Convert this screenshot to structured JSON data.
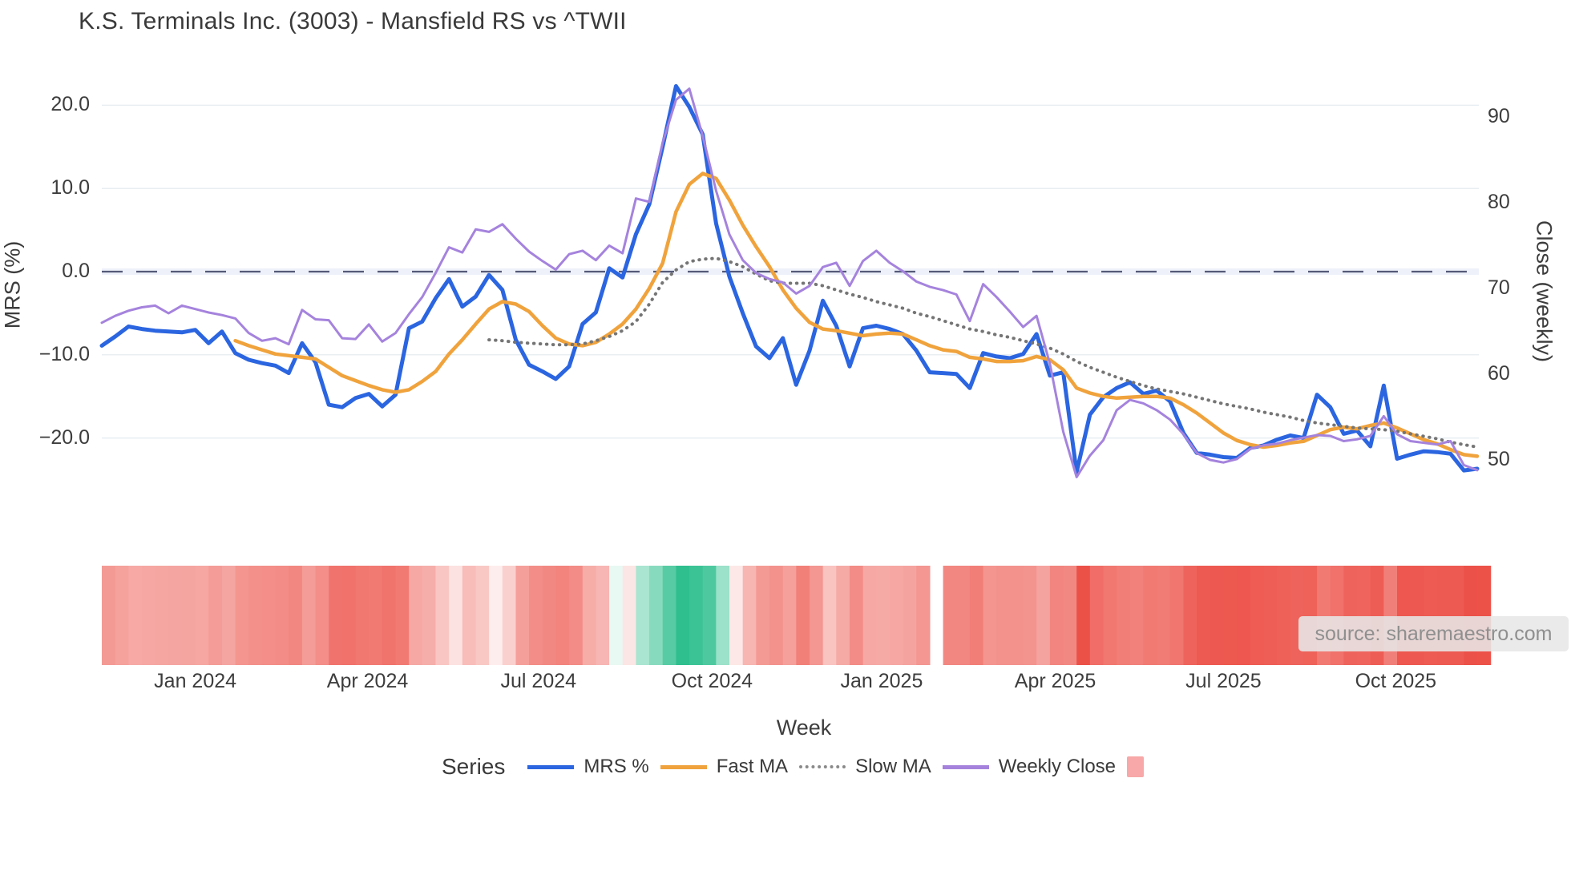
{
  "title": "K.S. Terminals Inc. (3003) - Mansfield RS vs ^TWII",
  "source_note": "source: sharemaestro.com",
  "chart_data": {
    "type": "line",
    "title": "K.S. Terminals Inc. (3003) - Mansfield RS vs ^TWII",
    "xlabel": "Week",
    "ylabel_left": "MRS (%)",
    "ylabel_right": "Close (weekly)",
    "grid": true,
    "zero_line_value": 0,
    "y_left_ticks": {
      "values": [
        20,
        10,
        0,
        -10,
        -20
      ],
      "labels": [
        "20.0",
        "10.0",
        "0.0",
        "−10.0",
        "−20.0"
      ]
    },
    "y_right_ticks": {
      "values": [
        90,
        80,
        70,
        60,
        50
      ],
      "labels": [
        "90",
        "80",
        "70",
        "60",
        "50"
      ]
    },
    "ylim_left": [
      -29,
      26
    ],
    "ylim_right": [
      44,
      97
    ],
    "x_ticks": [
      {
        "label": "Jan 2024",
        "week_index": 7.0
      },
      {
        "label": "Apr 2024",
        "week_index": 19.9
      },
      {
        "label": "Jul 2024",
        "week_index": 32.7
      },
      {
        "label": "Oct 2024",
        "week_index": 45.7
      },
      {
        "label": "Jan 2025",
        "week_index": 58.4
      },
      {
        "label": "Apr 2025",
        "week_index": 71.4
      },
      {
        "label": "Jul 2025",
        "week_index": 84.0
      },
      {
        "label": "Oct 2025",
        "week_index": 96.9
      }
    ],
    "legend": {
      "title": "Series",
      "items": [
        {
          "label": "MRS %",
          "swatch": "line",
          "color": "#2b65e0"
        },
        {
          "label": "Fast MA",
          "swatch": "line",
          "color": "#f0a33c"
        },
        {
          "label": "Slow MA",
          "swatch": "dots",
          "color": "#8a8a8a"
        },
        {
          "label": "Weekly Close",
          "swatch": "line",
          "color": "#a583dd"
        },
        {
          "label": "",
          "swatch": "square",
          "color": "#f8a8a8"
        }
      ]
    },
    "series": [
      {
        "name": "MRS %",
        "axis": "left",
        "color": "#2b65e0",
        "width": 5,
        "style": "solid",
        "start_index": 0,
        "values": [
          -8.9,
          -7.8,
          -6.6,
          -6.9,
          -7.1,
          -7.2,
          -7.3,
          -7.0,
          -8.6,
          -7.2,
          -9.8,
          -10.6,
          -11.0,
          -11.3,
          -12.2,
          -8.6,
          -10.9,
          -16.0,
          -16.3,
          -15.2,
          -14.7,
          -16.2,
          -14.8,
          -6.8,
          -6.0,
          -3.2,
          -0.9,
          -4.2,
          -3.0,
          -0.4,
          -2.2,
          -8.2,
          -11.2,
          -12.0,
          -12.9,
          -11.4,
          -6.3,
          -4.9,
          0.4,
          -0.7,
          4.5,
          8.1,
          15.0,
          22.3,
          19.8,
          16.5,
          5.8,
          -0.6,
          -5.0,
          -9.0,
          -10.4,
          -8.0,
          -13.6,
          -9.5,
          -3.5,
          -6.5,
          -11.4,
          -6.8,
          -6.5,
          -6.9,
          -7.5,
          -9.5,
          -12.1,
          -12.2,
          -12.3,
          -14.0,
          -9.8,
          -10.2,
          -10.4,
          -9.9,
          -7.5,
          -12.5,
          -12.1,
          -24.1,
          -17.2,
          -15.1,
          -14.0,
          -13.3,
          -14.7,
          -14.3,
          -15.6,
          -19.4,
          -21.8,
          -22.0,
          -22.3,
          -22.4,
          -21.2,
          -20.9,
          -20.2,
          -19.7,
          -20.0,
          -14.8,
          -16.3,
          -19.5,
          -19.1,
          -21.0,
          -13.7,
          -22.5,
          -22.0,
          -21.6,
          -21.7,
          -21.9,
          -23.9,
          -23.7
        ]
      },
      {
        "name": "Fast MA",
        "axis": "left",
        "color": "#f0a33c",
        "width": 4.5,
        "style": "solid",
        "start_index": 10,
        "values": [
          -8.3,
          -8.9,
          -9.4,
          -9.9,
          -10.1,
          -10.3,
          -10.5,
          -11.5,
          -12.5,
          -13.1,
          -13.7,
          -14.2,
          -14.5,
          -14.2,
          -13.2,
          -12.0,
          -9.9,
          -8.2,
          -6.3,
          -4.5,
          -3.6,
          -3.9,
          -4.8,
          -6.5,
          -8.0,
          -8.7,
          -8.9,
          -8.5,
          -7.5,
          -6.3,
          -4.5,
          -2.0,
          1.0,
          7.2,
          10.5,
          11.8,
          11.2,
          8.6,
          5.6,
          3.0,
          0.6,
          -2.2,
          -4.4,
          -6.1,
          -6.9,
          -7.1,
          -7.4,
          -7.7,
          -7.5,
          -7.4,
          -7.5,
          -8.2,
          -8.9,
          -9.4,
          -9.6,
          -10.3,
          -10.5,
          -10.8,
          -10.8,
          -10.7,
          -10.2,
          -10.6,
          -11.8,
          -14.0,
          -14.6,
          -15.0,
          -15.2,
          -15.1,
          -15.0,
          -15.0,
          -15.2,
          -16.0,
          -17.0,
          -18.2,
          -19.4,
          -20.3,
          -20.8,
          -21.1,
          -20.9,
          -20.6,
          -20.4,
          -19.7,
          -19.0,
          -18.7,
          -18.9,
          -18.5,
          -18.2,
          -18.8,
          -19.5,
          -20.2,
          -20.7,
          -21.4,
          -22.0,
          -22.2
        ]
      },
      {
        "name": "Slow MA",
        "axis": "left",
        "color": "#757575",
        "width": 4,
        "style": "dotted",
        "start_index": 29,
        "values": [
          -8.2,
          -8.3,
          -8.5,
          -8.6,
          -8.7,
          -8.8,
          -8.8,
          -8.7,
          -8.3,
          -7.8,
          -7.1,
          -6.0,
          -3.9,
          -1.3,
          0.2,
          1.2,
          1.5,
          1.6,
          1.2,
          0.6,
          -0.3,
          -1.1,
          -1.4,
          -1.4,
          -1.4,
          -1.7,
          -2.2,
          -2.7,
          -3.1,
          -3.6,
          -4.0,
          -4.4,
          -5.0,
          -5.4,
          -5.9,
          -6.4,
          -6.9,
          -7.2,
          -7.6,
          -7.9,
          -8.3,
          -8.7,
          -9.2,
          -9.9,
          -10.8,
          -11.5,
          -12.1,
          -12.7,
          -13.2,
          -13.7,
          -14.1,
          -14.4,
          -14.7,
          -15.1,
          -15.5,
          -15.9,
          -16.2,
          -16.5,
          -16.9,
          -17.2,
          -17.5,
          -17.9,
          -18.2,
          -18.4,
          -18.6,
          -18.8,
          -18.9,
          -19.0,
          -19.2,
          -19.5,
          -19.8,
          -20.1,
          -20.5,
          -20.8,
          -21.1
        ]
      },
      {
        "name": "Weekly Close",
        "axis": "right",
        "color": "#a583dd",
        "width": 3,
        "style": "solid",
        "start_index": 0,
        "values": [
          66.0,
          66.8,
          67.4,
          67.8,
          68.0,
          67.1,
          68.0,
          67.6,
          67.2,
          66.9,
          66.5,
          64.8,
          63.9,
          64.2,
          63.5,
          67.5,
          66.4,
          66.3,
          64.2,
          64.1,
          65.8,
          63.8,
          64.8,
          67.0,
          69.0,
          71.8,
          74.8,
          74.2,
          76.9,
          76.6,
          77.5,
          75.8,
          74.3,
          73.2,
          72.2,
          74.0,
          74.4,
          73.3,
          75.0,
          74.1,
          80.5,
          80.1,
          87.0,
          92.0,
          93.3,
          87.8,
          81.4,
          76.3,
          73.3,
          71.8,
          71.1,
          70.7,
          69.4,
          70.3,
          72.5,
          73.0,
          70.3,
          73.2,
          74.4,
          73.0,
          72.0,
          70.8,
          70.2,
          69.8,
          69.3,
          66.2,
          70.5,
          69.0,
          67.3,
          65.5,
          66.8,
          61.2,
          53.3,
          48.0,
          50.5,
          52.3,
          55.8,
          57.0,
          56.6,
          55.8,
          54.7,
          53.0,
          50.8,
          50.0,
          49.7,
          50.1,
          51.3,
          51.7,
          51.9,
          52.3,
          52.6,
          52.9,
          52.8,
          52.2,
          52.4,
          52.8,
          55.1,
          53.0,
          52.2,
          52.0,
          51.8,
          52.2,
          49.4,
          48.8
        ]
      }
    ],
    "heatmap": {
      "based_on": "MRS %",
      "missing_week": 62,
      "negative_color": "#ec4d44",
      "positive_color": "#2bbe8c",
      "negative_scale": 25,
      "positive_scale": 23,
      "gamma": 0.55
    }
  }
}
